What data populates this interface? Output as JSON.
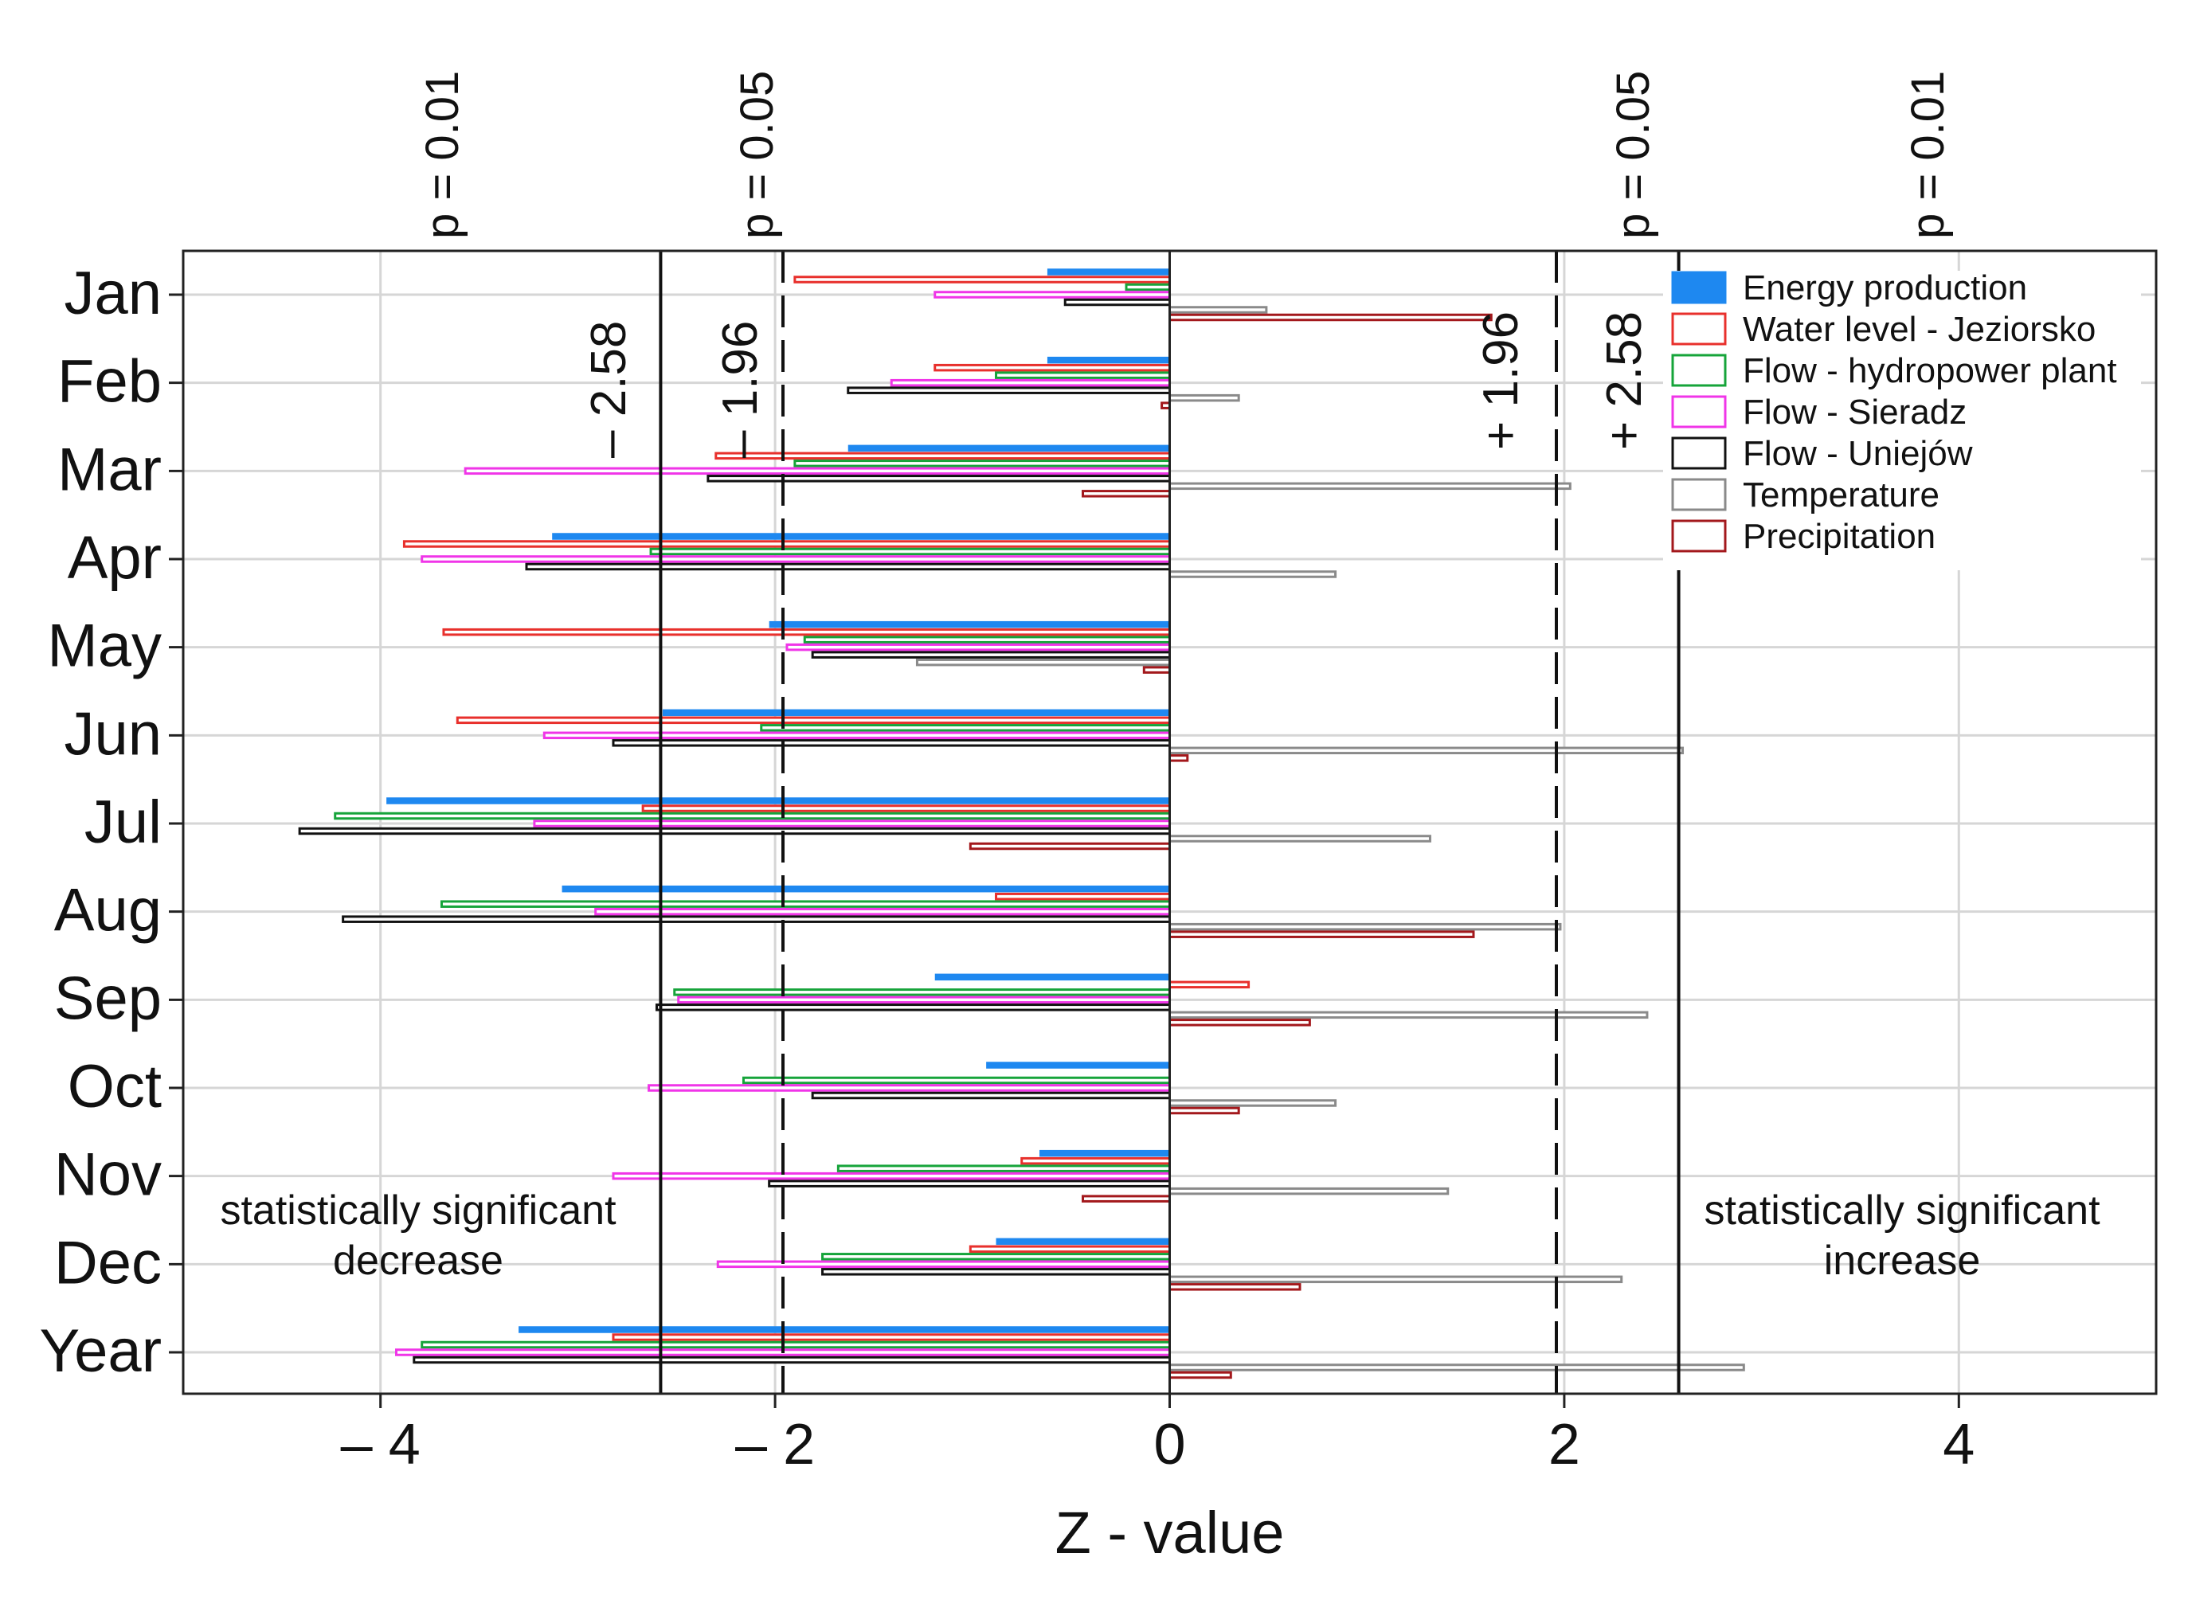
{
  "chart_data": {
    "type": "bar",
    "orientation": "horizontal",
    "xlabel": "Z - value",
    "ylabel": "",
    "xlim": [
      -5,
      5
    ],
    "xticks": [
      -4,
      -2,
      0,
      2,
      4
    ],
    "xtick_labels": [
      "– 4",
      "– 2",
      "0",
      "2",
      "4"
    ],
    "grid": true,
    "legend_position": "top-right",
    "categories": [
      "Jan",
      "Feb",
      "Mar",
      "Apr",
      "May",
      "Jun",
      "Jul",
      "Aug",
      "Sep",
      "Oct",
      "Nov",
      "Dec",
      "Year"
    ],
    "series": [
      {
        "name": "Energy production",
        "fill": "#1e88f0",
        "stroke": "#1e88f0",
        "filled": true,
        "values": [
          -0.62,
          -0.62,
          -1.63,
          -3.13,
          -2.03,
          -2.57,
          -3.97,
          -3.08,
          -1.19,
          -0.93,
          -0.66,
          -0.88,
          -3.3
        ]
      },
      {
        "name": "Water level - Jeziorsko",
        "fill": "#ffffff",
        "stroke": "#e8302c",
        "filled": false,
        "values": [
          -1.9,
          -1.19,
          -2.3,
          -3.88,
          -3.68,
          -3.61,
          -2.67,
          -0.88,
          0.4,
          0.0,
          -0.75,
          -1.01,
          -2.82
        ]
      },
      {
        "name": "Flow - hydropower plant",
        "fill": "#ffffff",
        "stroke": "#16a43a",
        "filled": false,
        "values": [
          -0.22,
          -0.88,
          -1.9,
          -2.63,
          -1.85,
          -2.07,
          -4.23,
          -3.69,
          -2.51,
          -2.16,
          -1.68,
          -1.76,
          -3.79
        ]
      },
      {
        "name": "Flow - Sieradz",
        "fill": "#ffffff",
        "stroke": "#f035e8",
        "filled": false,
        "values": [
          -1.19,
          -1.41,
          -3.57,
          -3.79,
          -1.94,
          -3.17,
          -3.22,
          -2.91,
          -2.49,
          -2.64,
          -2.82,
          -2.29,
          -3.92
        ]
      },
      {
        "name": "Flow - Uniejów",
        "fill": "#ffffff",
        "stroke": "#111111",
        "filled": false,
        "values": [
          -0.53,
          -1.63,
          -2.34,
          -3.26,
          -1.81,
          -2.82,
          -4.41,
          -4.19,
          -2.6,
          -1.81,
          -2.03,
          -1.76,
          -3.83
        ]
      },
      {
        "name": "Temperature",
        "fill": "#ffffff",
        "stroke": "#8a8a8a",
        "filled": false,
        "values": [
          0.49,
          0.35,
          2.03,
          0.84,
          -1.28,
          2.6,
          1.32,
          1.98,
          2.42,
          0.84,
          1.41,
          2.29,
          2.91
        ]
      },
      {
        "name": "Precipitation",
        "fill": "#ffffff",
        "stroke": "#a3181c",
        "filled": false,
        "values": [
          1.63,
          -0.04,
          -0.44,
          0.0,
          -0.13,
          0.09,
          -1.01,
          1.54,
          0.71,
          0.35,
          -0.44,
          0.66,
          0.31
        ]
      }
    ],
    "reference_lines": [
      {
        "value": -2.58,
        "style": "solid",
        "top_label": "p = 0.01",
        "inner_label": "– 2.58"
      },
      {
        "value": -1.96,
        "style": "dashed",
        "top_label": "p = 0.05",
        "inner_label": "– 1.96"
      },
      {
        "value": 1.96,
        "style": "dashed",
        "top_label": "p = 0.05",
        "inner_label": "+ 1.96"
      },
      {
        "value": 2.58,
        "style": "solid",
        "top_label": "p = 0.01",
        "inner_label": "+ 2.58"
      }
    ],
    "annotations": {
      "decrease_line1": "statistically significant",
      "decrease_line2": "decrease",
      "increase_line1": "statistically significant",
      "increase_line2": "increase"
    }
  }
}
